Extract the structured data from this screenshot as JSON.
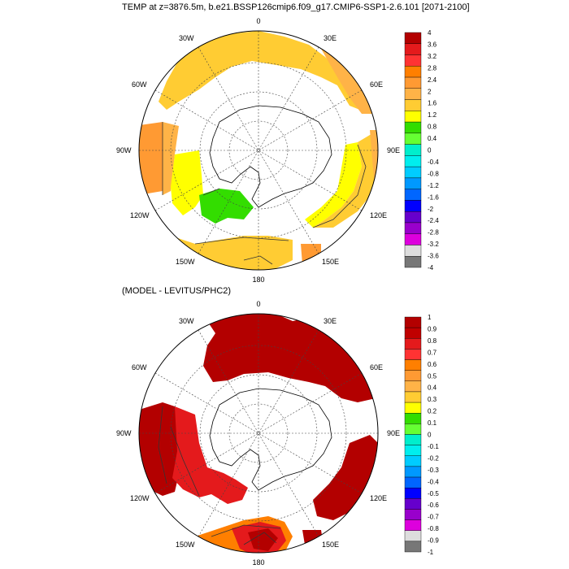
{
  "main_title": "TEMP at z=3876.5m, b.e21.BSSP126cmip6.f09_g17.CMIP6-SSP1-2.6.101 [2071-2100]",
  "diff_title": "(MODEL - LEVITUS/PHC2)",
  "lon_labels": {
    "l0": "0",
    "l30e": "30E",
    "l60e": "60E",
    "l90e": "90E",
    "l120e": "120E",
    "l150e": "150E",
    "l180": "180",
    "l150w": "150W",
    "l120w": "120W",
    "l90w": "90W",
    "l60w": "60W",
    "l30w": "30W"
  },
  "colorbar_top": {
    "labels": [
      "4",
      "3.6",
      "3.2",
      "2.8",
      "2.4",
      "2",
      "1.6",
      "1.2",
      "0.8",
      "0.4",
      "0",
      "-0.4",
      "-0.8",
      "-1.2",
      "-1.6",
      "-2",
      "-2.4",
      "-2.8",
      "-3.2",
      "-3.6",
      "-4"
    ],
    "colors": [
      "#b30000",
      "#e41a1c",
      "#ff3333",
      "#ff7f00",
      "#ff9a33",
      "#ffb347",
      "#ffcc33",
      "#ffff00",
      "#33dd00",
      "#66ff33",
      "#00eecc",
      "#00eeee",
      "#00ccff",
      "#0099ff",
      "#0066ff",
      "#0000ff",
      "#6600cc",
      "#9900cc",
      "#dd00dd",
      "#dddddd",
      "#777777"
    ]
  },
  "colorbar_bottom": {
    "labels": [
      "1",
      "0.9",
      "0.8",
      "0.7",
      "0.6",
      "0.5",
      "0.4",
      "0.3",
      "0.2",
      "0.1",
      "0",
      "-0.1",
      "-0.2",
      "-0.3",
      "-0.4",
      "-0.5",
      "-0.6",
      "-0.7",
      "-0.8",
      "-0.9",
      "-1"
    ],
    "colors": [
      "#b30000",
      "#c00000",
      "#e41a1c",
      "#ff3333",
      "#ff7f00",
      "#ff9a33",
      "#ffb347",
      "#ffcc33",
      "#ffff00",
      "#33dd00",
      "#66ff33",
      "#00eecc",
      "#00eeee",
      "#00ccff",
      "#0099ff",
      "#0066ff",
      "#0000ff",
      "#6600cc",
      "#9900cc",
      "#dd00dd",
      "#dddddd",
      "#777777"
    ]
  }
}
